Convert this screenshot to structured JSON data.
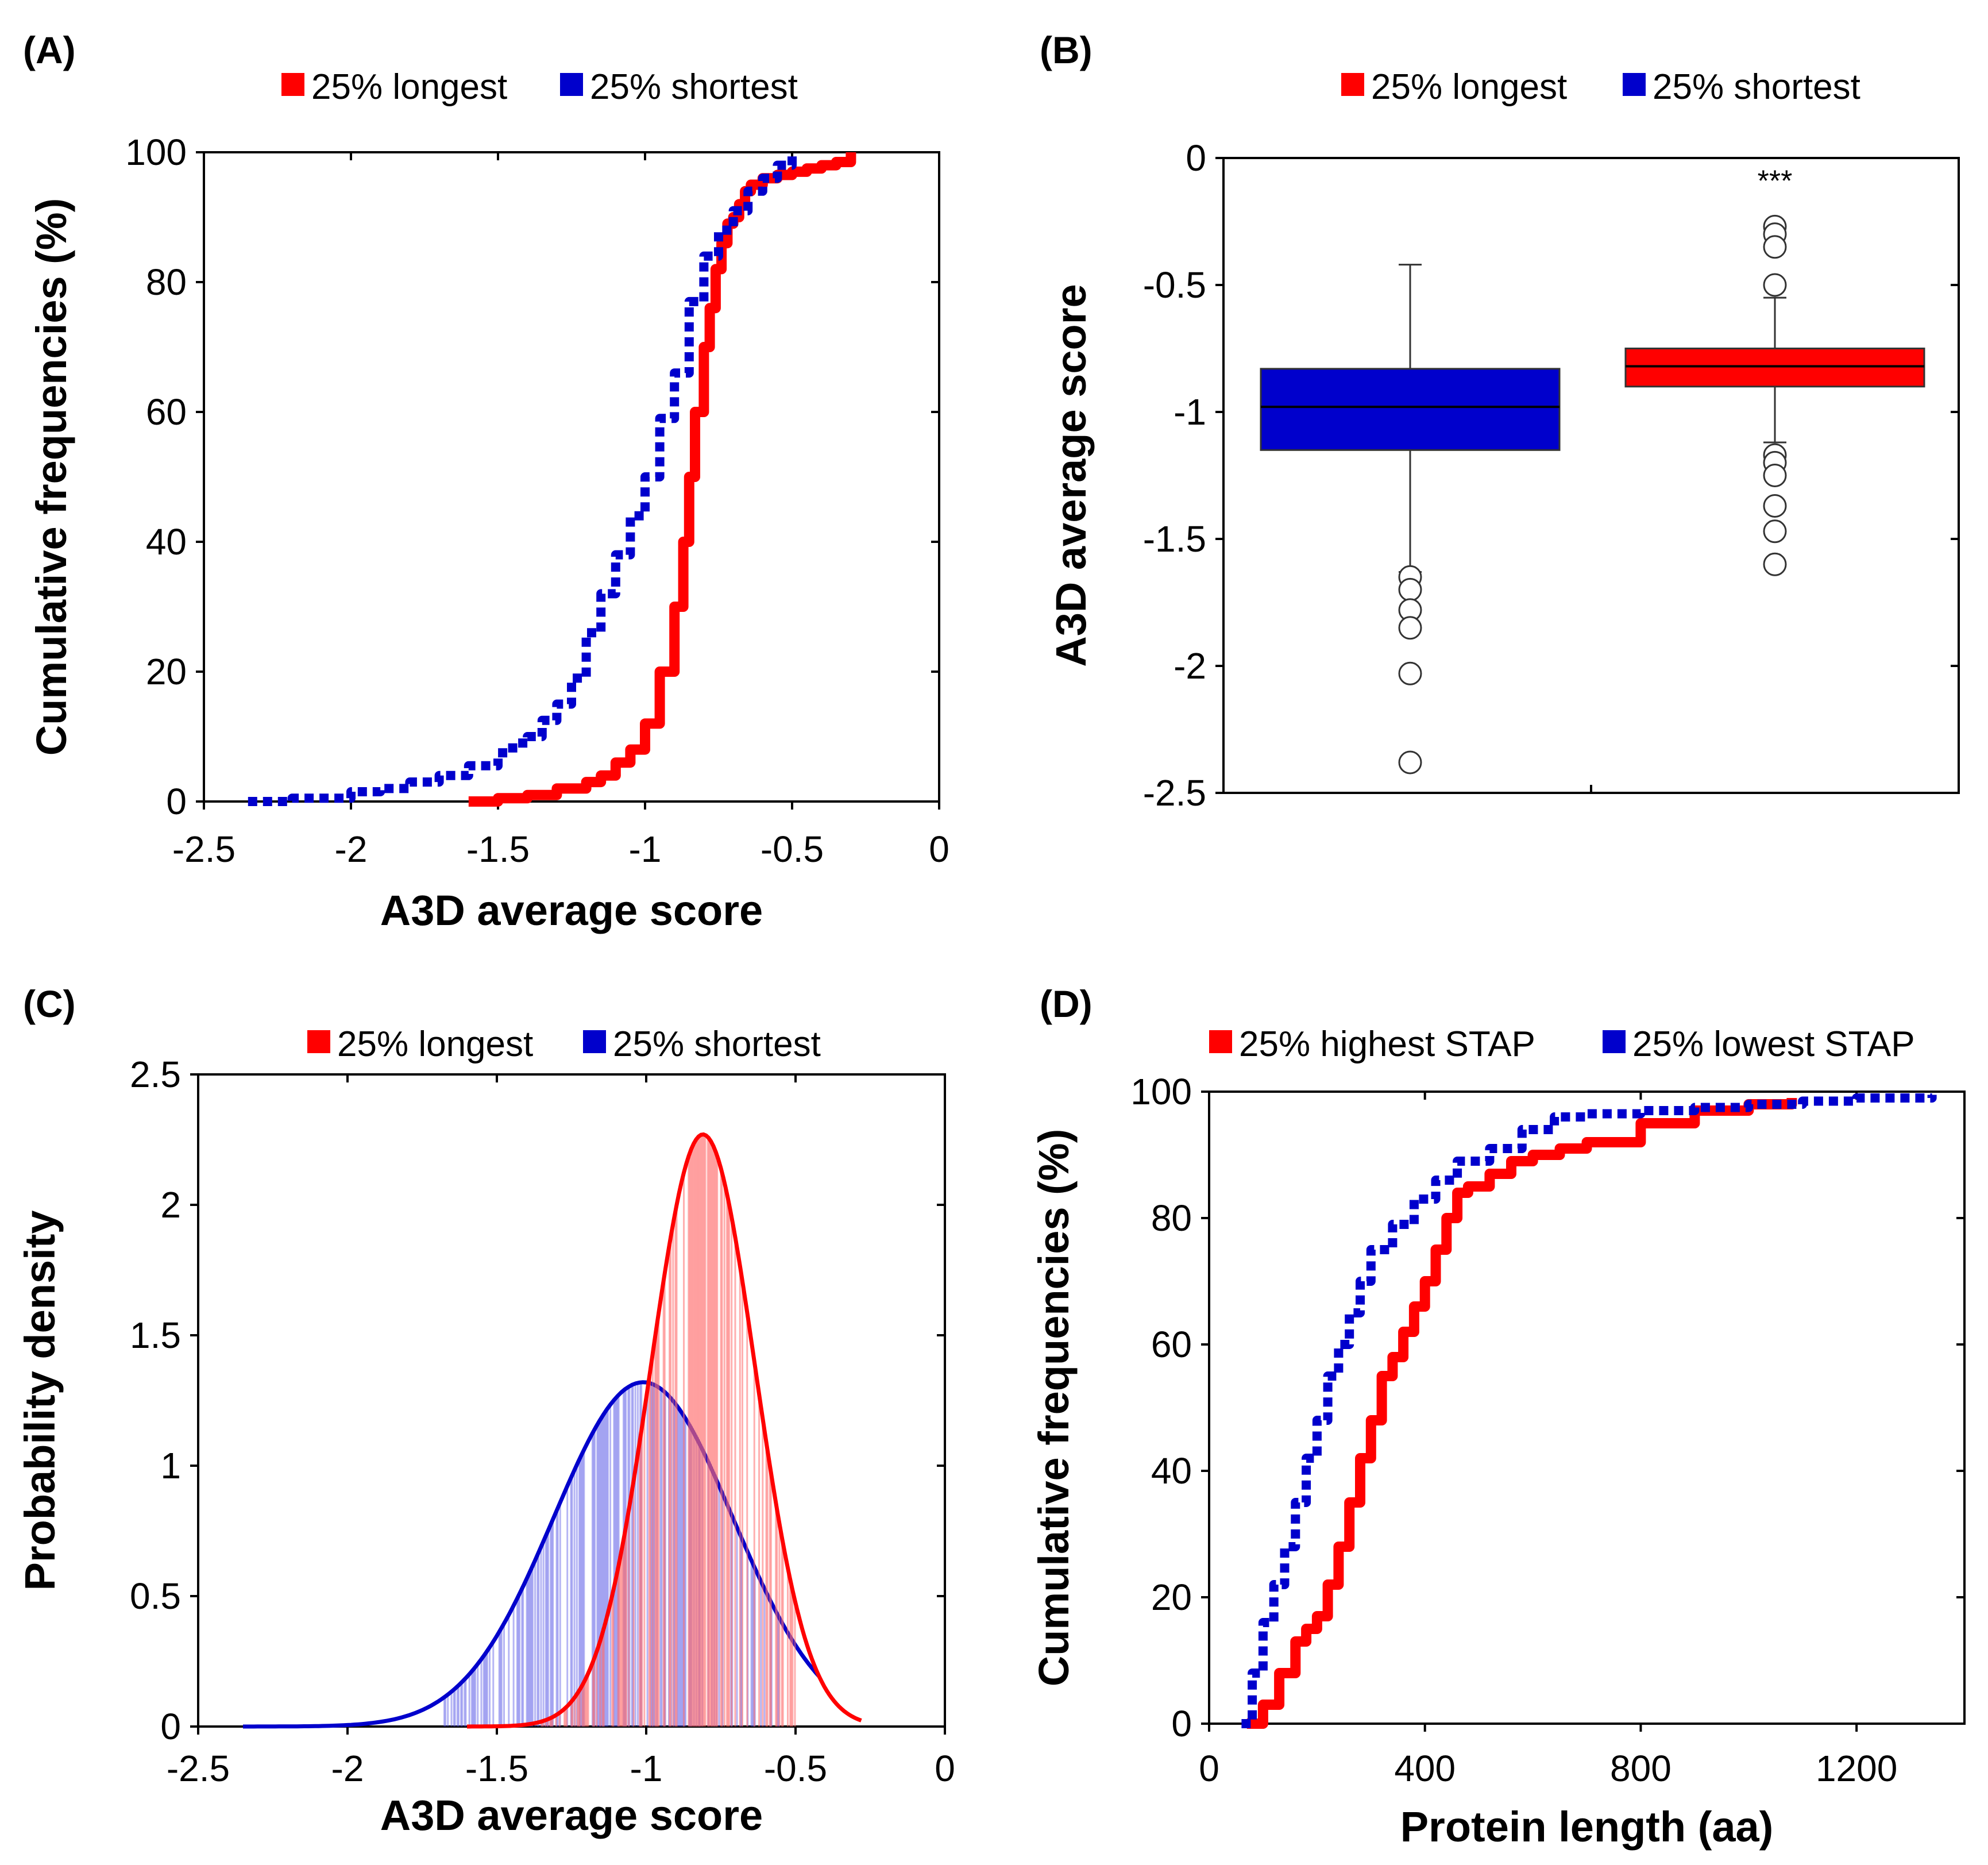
{
  "chart_data": [
    {
      "panel": "(A)",
      "type": "line",
      "xlabel": "A3D average score",
      "ylabel": "Cumulative frequencies (%)",
      "xlim": [
        -2.5,
        0
      ],
      "ylim": [
        0,
        100
      ],
      "xticks": [
        "-2.5",
        "-2",
        "-1.5",
        "-1",
        "-0.5",
        "0"
      ],
      "yticks": [
        "0",
        "20",
        "40",
        "60",
        "80",
        "100"
      ],
      "legend": [
        "25% longest",
        "25% shortest"
      ],
      "colors": [
        "#ff0000",
        "#0000cc"
      ],
      "series": [
        {
          "name": "25% longest",
          "x": [
            -1.6,
            -1.5,
            -1.4,
            -1.3,
            -1.2,
            -1.15,
            -1.1,
            -1.05,
            -1.0,
            -0.95,
            -0.9,
            -0.87,
            -0.85,
            -0.83,
            -0.8,
            -0.78,
            -0.76,
            -0.74,
            -0.72,
            -0.7,
            -0.68,
            -0.66,
            -0.64,
            -0.6,
            -0.55,
            -0.5,
            -0.45,
            -0.4,
            -0.35,
            -0.3
          ],
          "y": [
            0,
            0.5,
            1,
            2,
            3,
            4,
            6,
            8,
            12,
            20,
            30,
            40,
            50,
            60,
            70,
            76,
            82,
            86,
            89,
            90,
            92,
            94,
            95,
            96,
            96.5,
            97,
            97.5,
            98,
            98.5,
            100
          ]
        },
        {
          "name": "25% shortest",
          "x": [
            -2.35,
            -2.2,
            -2.0,
            -1.9,
            -1.8,
            -1.7,
            -1.6,
            -1.5,
            -1.45,
            -1.4,
            -1.35,
            -1.3,
            -1.25,
            -1.2,
            -1.15,
            -1.1,
            -1.05,
            -1.0,
            -0.95,
            -0.9,
            -0.85,
            -0.8,
            -0.75,
            -0.7,
            -0.65,
            -0.6,
            -0.55,
            -0.5
          ],
          "y": [
            0,
            0.5,
            1.5,
            2,
            3,
            4,
            5.5,
            7.5,
            9,
            10,
            12.5,
            15,
            19,
            26,
            32,
            38,
            44,
            50,
            59,
            66,
            77,
            84,
            88,
            91,
            94,
            96,
            98,
            100
          ]
        }
      ]
    },
    {
      "panel": "(B)",
      "type": "box",
      "ylabel": "A3D average score",
      "ylim": [
        -2.5,
        0
      ],
      "yticks": [
        "0",
        "-0.5",
        "-1",
        "-1.5",
        "-2",
        "-2.5"
      ],
      "legend": [
        "25% longest",
        "25% shortest"
      ],
      "colors": [
        "#ff0000",
        "#0000cc"
      ],
      "annotation": "***",
      "boxes": [
        {
          "name": "25% shortest",
          "q1": -1.15,
          "median": -0.98,
          "q3": -0.83,
          "whisker_low": -1.63,
          "whisker_high": -0.42,
          "outliers": [
            -1.65,
            -1.7,
            -1.78,
            -1.85,
            -2.03,
            -2.38
          ]
        },
        {
          "name": "25% longest",
          "q1": -0.9,
          "median": -0.82,
          "q3": -0.75,
          "whisker_low": -1.12,
          "whisker_high": -0.55,
          "outliers": [
            -0.27,
            -0.3,
            -0.35,
            -0.5,
            -1.17,
            -1.2,
            -1.25,
            -1.37,
            -1.47,
            -1.6
          ]
        }
      ]
    },
    {
      "panel": "(C)",
      "type": "area",
      "xlabel": "A3D average score",
      "ylabel": "Probability density",
      "xlim": [
        -2.5,
        0
      ],
      "ylim": [
        0,
        2.5
      ],
      "xticks": [
        "-2.5",
        "-2",
        "-1.5",
        "-1",
        "-0.5",
        "0"
      ],
      "yticks": [
        "0",
        "0.5",
        "1",
        "1.5",
        "2",
        "2.5"
      ],
      "legend": [
        "25% longest",
        "25% shortest"
      ],
      "colors": [
        "#ff0000",
        "#0000cc"
      ],
      "series": [
        {
          "name": "25% longest",
          "curve": "normal",
          "mean": -0.81,
          "peak": 2.27,
          "x_range": [
            -1.6,
            -0.28
          ],
          "fill_range": [
            -1.35,
            -0.5
          ]
        },
        {
          "name": "25% shortest",
          "curve": "normal",
          "mean": -1.01,
          "peak": 1.32,
          "x_range": [
            -2.35,
            -0.42
          ],
          "fill_range": [
            -1.68,
            -0.55
          ]
        }
      ]
    },
    {
      "panel": "(D)",
      "type": "line",
      "xlabel": "Protein length (aa)",
      "ylabel": "Cumulative frequencies (%)",
      "xlim": [
        0,
        1400
      ],
      "ylim": [
        0,
        100
      ],
      "xticks": [
        "0",
        "400",
        "800",
        "1200"
      ],
      "yticks": [
        "0",
        "20",
        "40",
        "60",
        "80",
        "100"
      ],
      "legend": [
        "25% highest STAP",
        "25% lowest STAP"
      ],
      "colors": [
        "#ff0000",
        "#0000cc"
      ],
      "series": [
        {
          "name": "25% highest STAP",
          "x": [
            70,
            100,
            130,
            160,
            180,
            200,
            220,
            240,
            260,
            280,
            300,
            320,
            340,
            360,
            380,
            400,
            420,
            440,
            460,
            480,
            520,
            560,
            600,
            650,
            700,
            800,
            900,
            1000,
            1080
          ],
          "y": [
            0,
            3,
            8,
            13,
            15,
            17,
            22,
            28,
            35,
            42,
            48,
            55,
            58,
            62,
            66,
            70,
            75,
            80,
            84,
            85,
            87,
            89,
            90,
            91,
            92,
            95,
            97,
            98,
            99
          ]
        },
        {
          "name": "25% lowest STAP",
          "x": [
            60,
            80,
            100,
            120,
            140,
            160,
            180,
            200,
            220,
            240,
            260,
            280,
            300,
            340,
            380,
            420,
            460,
            520,
            580,
            640,
            700,
            800,
            900,
            1000,
            1100,
            1200,
            1340
          ],
          "y": [
            0,
            8,
            16,
            22,
            28,
            35,
            42,
            48,
            55,
            60,
            65,
            70,
            75,
            79,
            83,
            86,
            89,
            91,
            94,
            96,
            96.5,
            97,
            97.5,
            98,
            98.5,
            99,
            99.5
          ]
        }
      ]
    }
  ],
  "panels": [
    {
      "label": "(A)",
      "legend": [
        "25% longest",
        "25% shortest"
      ],
      "xlabel": "A3D average score",
      "ylabel": "Cumulative frequencies (%)"
    },
    {
      "label": "(B)",
      "legend": [
        "25% longest",
        "25% shortest"
      ],
      "xlabel": "",
      "ylabel": "A3D average score"
    },
    {
      "label": "(C)",
      "legend": [
        "25% longest",
        "25% shortest"
      ],
      "xlabel": "A3D average score",
      "ylabel": "Probability density"
    },
    {
      "label": "(D)",
      "legend": [
        "25% highest STAP",
        "25% lowest STAP"
      ],
      "xlabel": "Protein length (aa)",
      "ylabel": "Cumulative frequencies (%)"
    }
  ]
}
